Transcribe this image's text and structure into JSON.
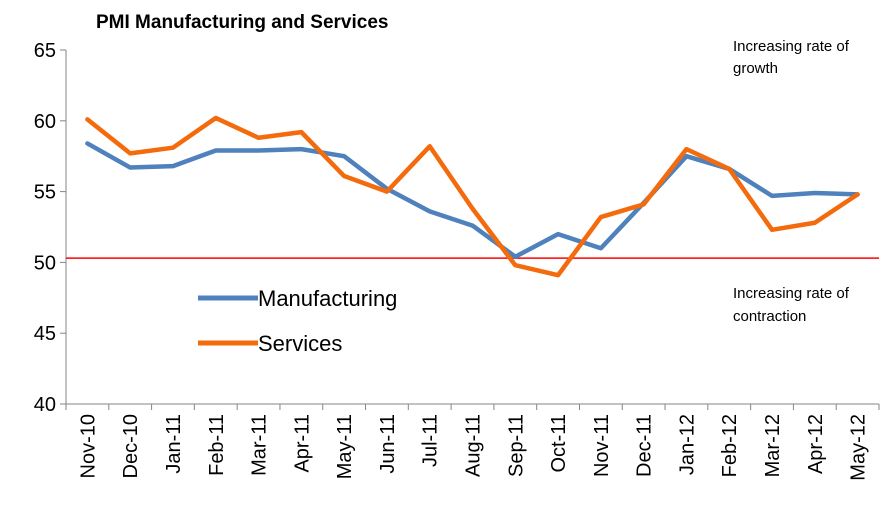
{
  "chart_data": {
    "type": "line",
    "title": "PMI Manufacturing and Services",
    "xlabel": "",
    "ylabel": "",
    "ylim": [
      40,
      65
    ],
    "yticks": [
      40,
      45,
      50,
      55,
      60,
      65
    ],
    "categories": [
      "Nov-10",
      "Dec-10",
      "Jan-11",
      "Feb-11",
      "Mar-11",
      "Apr-11",
      "May-11",
      "Jun-11",
      "Jul-11",
      "Aug-11",
      "Sep-11",
      "Oct-11",
      "Nov-11",
      "Dec-11",
      "Jan-12",
      "Feb-12",
      "Mar-12",
      "Apr-12",
      "May-12"
    ],
    "series": [
      {
        "name": "Manufacturing",
        "color": "#4f81bd",
        "values": [
          58.4,
          56.7,
          56.8,
          57.9,
          57.9,
          58.0,
          57.5,
          55.2,
          53.6,
          52.6,
          50.4,
          52.0,
          51.0,
          54.2,
          57.5,
          56.6,
          54.7,
          54.9,
          54.8
        ]
      },
      {
        "name": "Services",
        "color": "#f36b0d",
        "values": [
          60.1,
          57.7,
          58.1,
          60.2,
          58.8,
          59.2,
          56.1,
          55.0,
          58.2,
          53.8,
          49.8,
          49.1,
          53.2,
          54.1,
          58.0,
          56.6,
          52.3,
          52.8,
          54.8
        ]
      }
    ],
    "reference_line": {
      "value": 50.3,
      "color": "#ff0000"
    },
    "annotations": {
      "upper": [
        "Increasing rate of",
        "growth"
      ],
      "lower": [
        "Increasing rate of",
        "contraction"
      ]
    },
    "legend_position": "center-left",
    "grid": false
  }
}
